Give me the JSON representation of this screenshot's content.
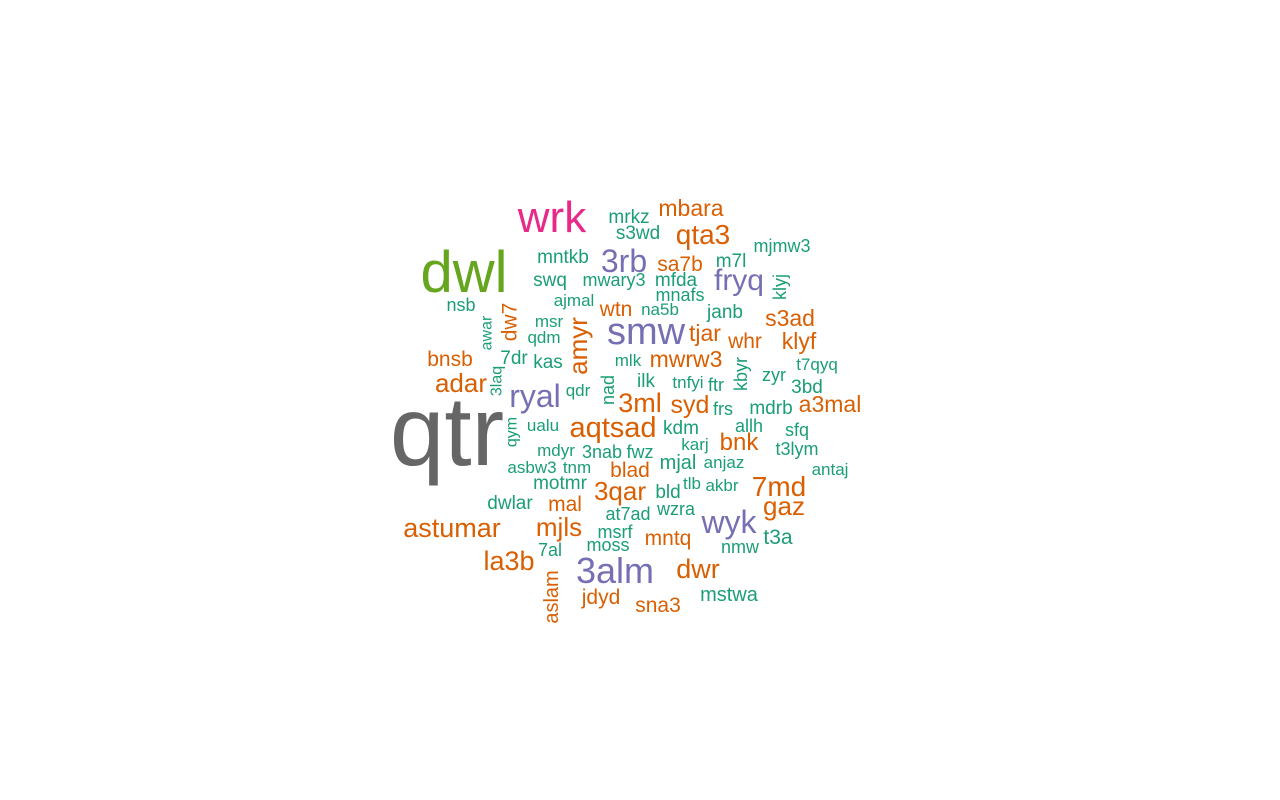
{
  "chart_data": {
    "type": "wordcloud",
    "palette": {
      "gray": "#666666",
      "green": "#66a61e",
      "pink": "#e7298a",
      "purple": "#7570b3",
      "orange": "#d95f02",
      "teal": "#1b9e77"
    },
    "words": [
      {
        "text": "qtr",
        "weight": 10,
        "color": "gray"
      },
      {
        "text": "dwl",
        "weight": 9,
        "color": "green"
      },
      {
        "text": "wrk",
        "weight": 8,
        "color": "pink"
      },
      {
        "text": "smw",
        "weight": 6,
        "color": "purple"
      },
      {
        "text": "3alm",
        "weight": 6,
        "color": "purple"
      },
      {
        "text": "ryal",
        "weight": 5,
        "color": "purple"
      },
      {
        "text": "wyk",
        "weight": 5,
        "color": "purple"
      },
      {
        "text": "fryq",
        "weight": 5,
        "color": "purple"
      },
      {
        "text": "3rb",
        "weight": 5,
        "color": "purple"
      },
      {
        "text": "aqtsad",
        "weight": 4,
        "color": "orange"
      },
      {
        "text": "astumar",
        "weight": 4,
        "color": "orange"
      },
      {
        "text": "7md",
        "weight": 4,
        "color": "orange"
      },
      {
        "text": "3qar",
        "weight": 4,
        "color": "orange"
      },
      {
        "text": "3ml",
        "weight": 4,
        "color": "orange"
      },
      {
        "text": "qta3",
        "weight": 4,
        "color": "orange"
      },
      {
        "text": "la3b",
        "weight": 4,
        "color": "orange"
      },
      {
        "text": "dwr",
        "weight": 4,
        "color": "orange"
      },
      {
        "text": "amyr",
        "weight": 4,
        "color": "orange"
      },
      {
        "text": "adar",
        "weight": 4,
        "color": "orange"
      },
      {
        "text": "mjls",
        "weight": 4,
        "color": "orange"
      },
      {
        "text": "gaz",
        "weight": 4,
        "color": "orange"
      },
      {
        "text": "mbara",
        "weight": 3,
        "color": "orange"
      },
      {
        "text": "mwrw3",
        "weight": 3,
        "color": "orange"
      },
      {
        "text": "a3mal",
        "weight": 3,
        "color": "orange"
      },
      {
        "text": "syd",
        "weight": 3,
        "color": "orange"
      },
      {
        "text": "bnk",
        "weight": 3,
        "color": "orange"
      },
      {
        "text": "klyf",
        "weight": 3,
        "color": "orange"
      },
      {
        "text": "s3ad",
        "weight": 3,
        "color": "orange"
      },
      {
        "text": "tjar",
        "weight": 3,
        "color": "orange"
      },
      {
        "text": "bnsb",
        "weight": 3,
        "color": "orange"
      },
      {
        "text": "sa7b",
        "weight": 3,
        "color": "orange"
      },
      {
        "text": "whr",
        "weight": 3,
        "color": "orange"
      },
      {
        "text": "wtn",
        "weight": 3,
        "color": "orange"
      },
      {
        "text": "dw7",
        "weight": 3,
        "color": "orange"
      },
      {
        "text": "blad",
        "weight": 3,
        "color": "orange"
      },
      {
        "text": "mal",
        "weight": 3,
        "color": "orange"
      },
      {
        "text": "mntq",
        "weight": 3,
        "color": "orange"
      },
      {
        "text": "jdyd",
        "weight": 3,
        "color": "orange"
      },
      {
        "text": "sna3",
        "weight": 3,
        "color": "orange"
      },
      {
        "text": "aslam",
        "weight": 3,
        "color": "orange"
      },
      {
        "text": "mrkz",
        "weight": 2,
        "color": "teal"
      },
      {
        "text": "s3wd",
        "weight": 2,
        "color": "teal"
      },
      {
        "text": "mntkb",
        "weight": 2,
        "color": "teal"
      },
      {
        "text": "swq",
        "weight": 2,
        "color": "teal"
      },
      {
        "text": "mwary3",
        "weight": 2,
        "color": "teal"
      },
      {
        "text": "mfda",
        "weight": 2,
        "color": "teal"
      },
      {
        "text": "m7l",
        "weight": 2,
        "color": "teal"
      },
      {
        "text": "mjmw3",
        "weight": 2,
        "color": "teal"
      },
      {
        "text": "klyj",
        "weight": 2,
        "color": "teal"
      },
      {
        "text": "nsb",
        "weight": 2,
        "color": "teal"
      },
      {
        "text": "ajmal",
        "weight": 2,
        "color": "teal"
      },
      {
        "text": "mnafs",
        "weight": 2,
        "color": "teal"
      },
      {
        "text": "na5b",
        "weight": 2,
        "color": "teal"
      },
      {
        "text": "janb",
        "weight": 2,
        "color": "teal"
      },
      {
        "text": "msr",
        "weight": 2,
        "color": "teal"
      },
      {
        "text": "awar",
        "weight": 2,
        "color": "teal"
      },
      {
        "text": "qdm",
        "weight": 2,
        "color": "teal"
      },
      {
        "text": "7dr",
        "weight": 2,
        "color": "teal"
      },
      {
        "text": "kas",
        "weight": 2,
        "color": "teal"
      },
      {
        "text": "mlk",
        "weight": 2,
        "color": "teal"
      },
      {
        "text": "kbyr",
        "weight": 2,
        "color": "teal"
      },
      {
        "text": "t7qyq",
        "weight": 2,
        "color": "teal"
      },
      {
        "text": "zyr",
        "weight": 2,
        "color": "teal"
      },
      {
        "text": "3laq",
        "weight": 2,
        "color": "teal"
      },
      {
        "text": "qdr",
        "weight": 2,
        "color": "teal"
      },
      {
        "text": "nad",
        "weight": 2,
        "color": "teal"
      },
      {
        "text": "ilk",
        "weight": 2,
        "color": "teal"
      },
      {
        "text": "tnfyi",
        "weight": 2,
        "color": "teal"
      },
      {
        "text": "ftr",
        "weight": 2,
        "color": "teal"
      },
      {
        "text": "3bd",
        "weight": 2,
        "color": "teal"
      },
      {
        "text": "mdrb",
        "weight": 2,
        "color": "teal"
      },
      {
        "text": "frs",
        "weight": 2,
        "color": "teal"
      },
      {
        "text": "ualu",
        "weight": 2,
        "color": "teal"
      },
      {
        "text": "kdm",
        "weight": 2,
        "color": "teal"
      },
      {
        "text": "allh",
        "weight": 2,
        "color": "teal"
      },
      {
        "text": "sfq",
        "weight": 2,
        "color": "teal"
      },
      {
        "text": "qym",
        "weight": 2,
        "color": "teal"
      },
      {
        "text": "karj",
        "weight": 2,
        "color": "teal"
      },
      {
        "text": "t3lym",
        "weight": 2,
        "color": "teal"
      },
      {
        "text": "mdyr",
        "weight": 2,
        "color": "teal"
      },
      {
        "text": "3nab",
        "weight": 2,
        "color": "teal"
      },
      {
        "text": "fwz",
        "weight": 2,
        "color": "teal"
      },
      {
        "text": "mjal",
        "weight": 2,
        "color": "teal"
      },
      {
        "text": "anjaz",
        "weight": 2,
        "color": "teal"
      },
      {
        "text": "asbw3",
        "weight": 2,
        "color": "teal"
      },
      {
        "text": "tnm",
        "weight": 2,
        "color": "teal"
      },
      {
        "text": "antaj",
        "weight": 2,
        "color": "teal"
      },
      {
        "text": "motmr",
        "weight": 2,
        "color": "teal"
      },
      {
        "text": "tlb",
        "weight": 2,
        "color": "teal"
      },
      {
        "text": "akbr",
        "weight": 2,
        "color": "teal"
      },
      {
        "text": "bld",
        "weight": 2,
        "color": "teal"
      },
      {
        "text": "dwlar",
        "weight": 2,
        "color": "teal"
      },
      {
        "text": "at7ad",
        "weight": 2,
        "color": "teal"
      },
      {
        "text": "wzra",
        "weight": 2,
        "color": "teal"
      },
      {
        "text": "msrf",
        "weight": 2,
        "color": "teal"
      },
      {
        "text": "nmw",
        "weight": 2,
        "color": "teal"
      },
      {
        "text": "t3a",
        "weight": 2,
        "color": "teal"
      },
      {
        "text": "7al",
        "weight": 2,
        "color": "teal"
      },
      {
        "text": "moss",
        "weight": 2,
        "color": "teal"
      },
      {
        "text": "mstwa",
        "weight": 2,
        "color": "teal"
      }
    ]
  }
}
